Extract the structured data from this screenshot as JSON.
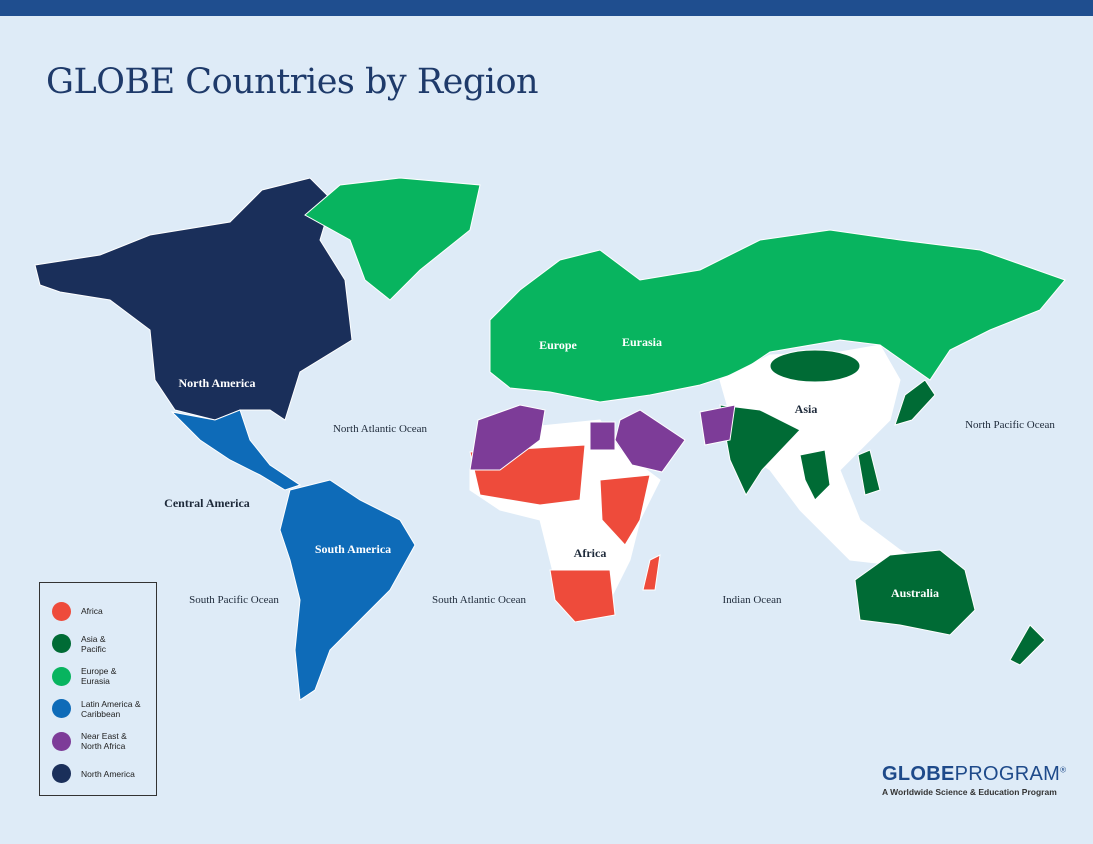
{
  "title": "GLOBE Countries by Region",
  "colors": {
    "background": "#deebf7",
    "top_bar": "#1f4e8f",
    "africa": "#ee4b3b",
    "asia_pacific": "#006b35",
    "europe_eurasia": "#08b45f",
    "latin_america": "#0e6bb8",
    "near_east": "#7d3c98",
    "north_america": "#1a2f5a",
    "non_member": "#ffffff"
  },
  "region_labels": {
    "north_america": "North America",
    "central_america": "Central America",
    "south_america": "South America",
    "europe": "Europe",
    "eurasia": "Eurasia",
    "asia": "Asia",
    "africa": "Africa",
    "australia": "Australia"
  },
  "ocean_labels": {
    "north_atlantic": "North Atlantic Ocean",
    "south_atlantic": "South Atlantic Ocean",
    "north_pacific": "North Pacific Ocean",
    "south_pacific": "South Pacific Ocean",
    "indian": "Indian Ocean"
  },
  "legend": [
    {
      "label": "Africa",
      "color": "#ee4b3b"
    },
    {
      "label": "Asia & Pacific",
      "color": "#006b35"
    },
    {
      "label": "Europe & Eurasia",
      "color": "#08b45f"
    },
    {
      "label": "Latin America & Caribbean",
      "color": "#0e6bb8"
    },
    {
      "label": "Near East & North Africa",
      "color": "#7d3c98"
    },
    {
      "label": "North America",
      "color": "#1a2f5a"
    }
  ],
  "logo": {
    "bold": "GLOBE",
    "rest": "PROGRAM",
    "mark": "®",
    "tagline": "A Worldwide Science & Education Program"
  }
}
